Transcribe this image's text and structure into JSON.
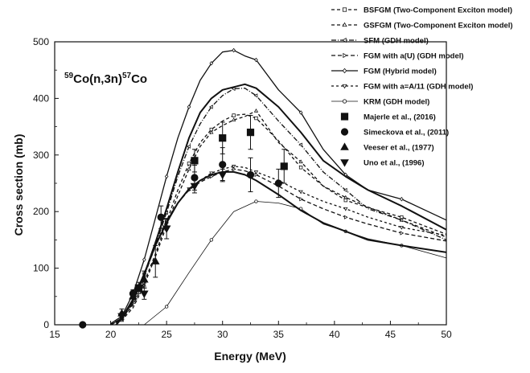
{
  "chart_data": {
    "type": "line",
    "title": {
      "parts": [
        {
          "text": "59",
          "sup": true
        },
        {
          "text": "Co(n,3n)",
          "sup": false
        },
        {
          "text": "57",
          "sup": true
        },
        {
          "text": "Co",
          "sup": false
        }
      ]
    },
    "xlabel": "Energy (MeV)",
    "ylabel": "Cross section (mb)",
    "xlim": [
      15,
      50
    ],
    "ylim": [
      0,
      500
    ],
    "xticks": [
      15,
      20,
      25,
      30,
      35,
      40,
      45,
      50
    ],
    "yticks": [
      0,
      100,
      200,
      300,
      400,
      500
    ],
    "grid": false,
    "legend_position": "top-right (outside plot)",
    "series": [
      {
        "name": "BSFGM (Two-Component Exciton model)",
        "kind": "model",
        "dash": "4,3",
        "marker": "square-open",
        "width": 1.3,
        "x": [
          20,
          21,
          22,
          23,
          24,
          25,
          26,
          27,
          28,
          29,
          30,
          31,
          32,
          33,
          35,
          37,
          39,
          41,
          43,
          46,
          50
        ],
        "y": [
          0,
          10,
          35,
          75,
          125,
          182,
          238,
          285,
          322,
          345,
          360,
          370,
          372,
          365,
          325,
          278,
          245,
          220,
          207,
          190,
          160
        ]
      },
      {
        "name": "GSFGM (Two-Component Exciton model)",
        "kind": "model",
        "dash": "4,3",
        "marker": "triangle-open",
        "width": 1.3,
        "x": [
          20,
          21,
          22,
          23,
          24,
          25,
          26,
          27,
          28,
          29,
          30,
          31,
          32,
          33,
          35,
          37,
          39,
          41,
          43,
          46,
          50
        ],
        "y": [
          0,
          8,
          30,
          70,
          120,
          175,
          228,
          275,
          315,
          340,
          352,
          362,
          368,
          378,
          322,
          288,
          245,
          225,
          208,
          185,
          155
        ]
      },
      {
        "name": "SFM (GDH model)",
        "kind": "model",
        "dash": "6,2,1,2",
        "marker": "triangle-left-open",
        "width": 1.3,
        "x": [
          20,
          21,
          22,
          23,
          24,
          25,
          26,
          27,
          28,
          29,
          30,
          31,
          32,
          33,
          35,
          37,
          39,
          41,
          43,
          46,
          50
        ],
        "y": [
          0,
          10,
          38,
          85,
          140,
          198,
          262,
          315,
          355,
          385,
          405,
          417,
          418,
          405,
          360,
          318,
          270,
          238,
          205,
          185,
          150
        ]
      },
      {
        "name": "FGM with a(U) (GDH model)",
        "kind": "model",
        "dash": "5,3",
        "marker": "triangle-right-open",
        "width": 1.3,
        "x": [
          20,
          21,
          22,
          23,
          24,
          25,
          26,
          27,
          28,
          29,
          30,
          31,
          32,
          33,
          35,
          37,
          39,
          41,
          43,
          46,
          50
        ],
        "y": [
          0,
          12,
          45,
          90,
          140,
          185,
          215,
          238,
          252,
          262,
          270,
          275,
          272,
          265,
          245,
          222,
          205,
          190,
          178,
          162,
          148
        ]
      },
      {
        "name": "FGM (Hybrid model)",
        "kind": "model",
        "dash": "none",
        "marker": "diamond-open",
        "width": 1.3,
        "x": [
          20,
          21,
          22,
          23,
          24,
          25,
          26,
          27,
          28,
          29,
          30,
          31,
          32,
          33,
          35,
          37,
          39,
          41,
          43,
          46,
          50
        ],
        "y": [
          2,
          15,
          55,
          115,
          188,
          262,
          330,
          385,
          432,
          462,
          482,
          485,
          475,
          468,
          415,
          375,
          310,
          265,
          238,
          222,
          185
        ]
      },
      {
        "name": "FGM with a=A/11 (GDH model)",
        "kind": "model",
        "dash": "3,3",
        "marker": "triangle-down-open",
        "width": 1.3,
        "x": [
          20,
          21,
          22,
          23,
          24,
          25,
          26,
          27,
          28,
          29,
          30,
          31,
          32,
          33,
          35,
          37,
          39,
          41,
          43,
          46,
          50
        ],
        "y": [
          0,
          12,
          42,
          88,
          138,
          183,
          215,
          240,
          255,
          268,
          275,
          280,
          278,
          270,
          255,
          235,
          218,
          205,
          190,
          172,
          158
        ]
      },
      {
        "name": "KRM (GDH model)",
        "kind": "model",
        "dash": "none",
        "marker": "circle-open",
        "width": 0.8,
        "x": [
          23,
          25,
          27,
          29,
          31,
          33,
          35,
          37,
          39,
          41,
          43,
          46,
          50
        ],
        "y": [
          0,
          32,
          92,
          150,
          200,
          218,
          215,
          205,
          178,
          165,
          152,
          140,
          118
        ]
      },
      {
        "name": "",
        "kind": "model",
        "dash": "none",
        "marker": "none",
        "width": 2.0,
        "x": [
          20.5,
          21,
          22,
          23,
          24,
          25,
          26,
          27,
          28,
          29,
          30,
          31,
          32,
          33,
          35,
          37,
          39,
          41,
          43,
          46,
          50
        ],
        "y": [
          0,
          12,
          45,
          90,
          140,
          180,
          215,
          240,
          255,
          265,
          270,
          270,
          265,
          255,
          230,
          202,
          180,
          165,
          150,
          140,
          128
        ]
      },
      {
        "name": "",
        "kind": "model",
        "dash": "none",
        "marker": "none",
        "width": 2.0,
        "x": [
          20.5,
          21,
          22,
          23,
          24,
          25,
          26,
          27,
          28,
          29,
          30,
          31,
          32,
          33,
          35,
          37,
          39,
          41,
          43,
          46,
          50
        ],
        "y": [
          0,
          12,
          42,
          88,
          145,
          205,
          270,
          330,
          375,
          400,
          415,
          420,
          425,
          418,
          385,
          340,
          290,
          262,
          238,
          210,
          168
        ]
      },
      {
        "name": "Majerle et al., (2016)",
        "kind": "experiment",
        "marker": "square-filled",
        "x": [
          22.5,
          27.5,
          30.0,
          32.5,
          35.5
        ],
        "y": [
          65,
          290,
          330,
          340,
          280
        ],
        "err": [
          10,
          20,
          28,
          30,
          30
        ]
      },
      {
        "name": "Simeckova et al.,  (2011)",
        "kind": "experiment",
        "marker": "circle-filled",
        "x": [
          17.5,
          22.0,
          24.5,
          27.5,
          30.0,
          32.5,
          35.0
        ],
        "y": [
          0,
          55,
          190,
          260,
          283,
          265,
          250
        ],
        "err": [
          0,
          5,
          20,
          22,
          30,
          30,
          25
        ]
      },
      {
        "name": "Veeser et al., (1977)",
        "kind": "experiment",
        "marker": "triangle-filled",
        "x": [
          21.0,
          22.0,
          23.0,
          24.0
        ],
        "y": [
          20,
          50,
          80,
          112
        ],
        "err": [
          8,
          12,
          15,
          28
        ]
      },
      {
        "name": "Uno et al., (1996)",
        "kind": "experiment",
        "marker": "triangle-down-filled",
        "x": [
          21.0,
          23.0,
          25.0,
          27.5,
          30.0
        ],
        "y": [
          15,
          55,
          170,
          245,
          265
        ],
        "err": [
          6,
          10,
          18,
          12,
          10
        ]
      }
    ]
  }
}
